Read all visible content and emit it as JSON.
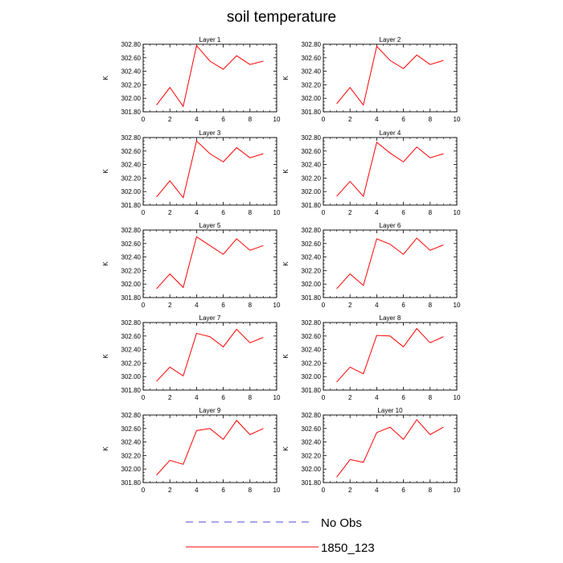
{
  "figure": {
    "title": "soil temperature",
    "legend": [
      {
        "label": "No Obs",
        "color": "#4b4bd0",
        "dash": "dashed"
      },
      {
        "label": "1850_123",
        "color": "#ff0000",
        "dash": "solid"
      }
    ]
  },
  "chart_data": [
    {
      "type": "line",
      "title": "Layer 1",
      "ylabel": "K",
      "xlim": [
        0,
        10
      ],
      "ylim": [
        301.8,
        302.8
      ],
      "xticks": [
        "0",
        "2",
        "4",
        "6",
        "8",
        "10"
      ],
      "yticks": [
        "301.80",
        "302.00",
        "302.20",
        "302.40",
        "302.60",
        "302.80"
      ],
      "series": [
        {
          "name": "1850_123",
          "color": "#ff0000",
          "x": [
            1,
            2,
            3,
            4,
            5,
            6,
            7,
            8,
            9
          ],
          "values": [
            301.9,
            302.16,
            301.88,
            302.78,
            302.55,
            302.43,
            302.63,
            302.5,
            302.55
          ]
        }
      ]
    },
    {
      "type": "line",
      "title": "Layer 2",
      "ylabel": "K",
      "xlim": [
        0,
        10
      ],
      "ylim": [
        301.8,
        302.8
      ],
      "xticks": [
        "0",
        "2",
        "4",
        "6",
        "8",
        "10"
      ],
      "yticks": [
        "301.80",
        "302.00",
        "302.20",
        "302.40",
        "302.60",
        "302.80"
      ],
      "series": [
        {
          "name": "1850_123",
          "color": "#ff0000",
          "x": [
            1,
            2,
            3,
            4,
            5,
            6,
            7,
            8,
            9
          ],
          "values": [
            301.92,
            302.16,
            301.9,
            302.77,
            302.56,
            302.44,
            302.64,
            302.5,
            302.56
          ]
        }
      ]
    },
    {
      "type": "line",
      "title": "Layer 3",
      "ylabel": "K",
      "xlim": [
        0,
        10
      ],
      "ylim": [
        301.8,
        302.8
      ],
      "xticks": [
        "0",
        "2",
        "4",
        "6",
        "8",
        "10"
      ],
      "yticks": [
        "301.80",
        "302.00",
        "302.20",
        "302.40",
        "302.60",
        "302.80"
      ],
      "series": [
        {
          "name": "1850_123",
          "color": "#ff0000",
          "x": [
            1,
            2,
            3,
            4,
            5,
            6,
            7,
            8,
            9
          ],
          "values": [
            301.92,
            302.16,
            301.91,
            302.75,
            302.56,
            302.44,
            302.65,
            302.5,
            302.56
          ]
        }
      ]
    },
    {
      "type": "line",
      "title": "Layer 4",
      "ylabel": "K",
      "xlim": [
        0,
        10
      ],
      "ylim": [
        301.8,
        302.8
      ],
      "xticks": [
        "0",
        "2",
        "4",
        "6",
        "8",
        "10"
      ],
      "yticks": [
        "301.80",
        "302.00",
        "302.20",
        "302.40",
        "302.60",
        "302.80"
      ],
      "series": [
        {
          "name": "1850_123",
          "color": "#ff0000",
          "x": [
            1,
            2,
            3,
            4,
            5,
            6,
            7,
            8,
            9
          ],
          "values": [
            301.93,
            302.15,
            301.93,
            302.73,
            302.57,
            302.44,
            302.66,
            302.5,
            302.56
          ]
        }
      ]
    },
    {
      "type": "line",
      "title": "Layer 5",
      "ylabel": "K",
      "xlim": [
        0,
        10
      ],
      "ylim": [
        301.8,
        302.8
      ],
      "xticks": [
        "0",
        "2",
        "4",
        "6",
        "8",
        "10"
      ],
      "yticks": [
        "301.80",
        "302.00",
        "302.20",
        "302.40",
        "302.60",
        "302.80"
      ],
      "series": [
        {
          "name": "1850_123",
          "color": "#ff0000",
          "x": [
            1,
            2,
            3,
            4,
            5,
            6,
            7,
            8,
            9
          ],
          "values": [
            301.93,
            302.15,
            301.95,
            302.7,
            302.57,
            302.44,
            302.67,
            302.5,
            302.57
          ]
        }
      ]
    },
    {
      "type": "line",
      "title": "Layer 6",
      "ylabel": "K",
      "xlim": [
        0,
        10
      ],
      "ylim": [
        301.8,
        302.8
      ],
      "xticks": [
        "0",
        "2",
        "4",
        "6",
        "8",
        "10"
      ],
      "yticks": [
        "301.80",
        "302.00",
        "302.20",
        "302.40",
        "302.60",
        "302.80"
      ],
      "series": [
        {
          "name": "1850_123",
          "color": "#ff0000",
          "x": [
            1,
            2,
            3,
            4,
            5,
            6,
            7,
            8,
            9
          ],
          "values": [
            301.93,
            302.15,
            301.98,
            302.67,
            302.59,
            302.44,
            302.68,
            302.5,
            302.58
          ]
        }
      ]
    },
    {
      "type": "line",
      "title": "Layer 7",
      "ylabel": "K",
      "xlim": [
        0,
        10
      ],
      "ylim": [
        301.8,
        302.8
      ],
      "xticks": [
        "0",
        "2",
        "4",
        "6",
        "8",
        "10"
      ],
      "yticks": [
        "301.80",
        "302.00",
        "302.20",
        "302.40",
        "302.60",
        "302.80"
      ],
      "series": [
        {
          "name": "1850_123",
          "color": "#ff0000",
          "x": [
            1,
            2,
            3,
            4,
            5,
            6,
            7,
            8,
            9
          ],
          "values": [
            301.93,
            302.14,
            302.01,
            302.64,
            302.59,
            302.44,
            302.7,
            302.5,
            302.58
          ]
        }
      ]
    },
    {
      "type": "line",
      "title": "Layer 8",
      "ylabel": "K",
      "xlim": [
        0,
        10
      ],
      "ylim": [
        301.8,
        302.8
      ],
      "xticks": [
        "0",
        "2",
        "4",
        "6",
        "8",
        "10"
      ],
      "yticks": [
        "301.80",
        "302.00",
        "302.20",
        "302.40",
        "302.60",
        "302.80"
      ],
      "series": [
        {
          "name": "1850_123",
          "color": "#ff0000",
          "x": [
            1,
            2,
            3,
            4,
            5,
            6,
            7,
            8,
            9
          ],
          "values": [
            301.92,
            302.14,
            302.04,
            302.61,
            302.6,
            302.44,
            302.71,
            302.5,
            302.59
          ]
        }
      ]
    },
    {
      "type": "line",
      "title": "Layer 9",
      "ylabel": "K",
      "xlim": [
        0,
        10
      ],
      "ylim": [
        301.8,
        302.8
      ],
      "xticks": [
        "0",
        "2",
        "4",
        "6",
        "8",
        "10"
      ],
      "yticks": [
        "301.80",
        "302.00",
        "302.20",
        "302.40",
        "302.60",
        "302.80"
      ],
      "series": [
        {
          "name": "1850_123",
          "color": "#ff0000",
          "x": [
            1,
            2,
            3,
            4,
            5,
            6,
            7,
            8,
            9
          ],
          "values": [
            301.91,
            302.13,
            302.07,
            302.57,
            302.6,
            302.44,
            302.72,
            302.51,
            302.6
          ]
        }
      ]
    },
    {
      "type": "line",
      "title": "Layer 10",
      "ylabel": "K",
      "xlim": [
        0,
        10
      ],
      "ylim": [
        301.8,
        302.8
      ],
      "xticks": [
        "0",
        "2",
        "4",
        "6",
        "8",
        "10"
      ],
      "yticks": [
        "301.80",
        "302.00",
        "302.20",
        "302.40",
        "302.60",
        "302.80"
      ],
      "series": [
        {
          "name": "1850_123",
          "color": "#ff0000",
          "x": [
            1,
            2,
            3,
            4,
            5,
            6,
            7,
            8,
            9
          ],
          "values": [
            301.88,
            302.14,
            302.1,
            302.54,
            302.62,
            302.44,
            302.73,
            302.51,
            302.62
          ]
        }
      ]
    }
  ]
}
